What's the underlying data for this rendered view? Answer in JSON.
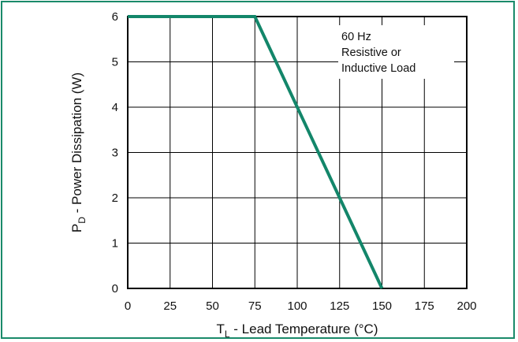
{
  "chart_data": {
    "type": "line",
    "xlabel_main": "T",
    "xlabel_sub": "L",
    "xlabel_rest": " - Lead Temperature (°C)",
    "ylabel_main": "P",
    "ylabel_sub": "D",
    "ylabel_rest": " - Power Dissipation (W)",
    "xlim": [
      0,
      200
    ],
    "ylim": [
      0,
      6
    ],
    "xticks": [
      0,
      25,
      50,
      75,
      100,
      125,
      150,
      175,
      200
    ],
    "yticks": [
      0,
      1,
      2,
      3,
      4,
      5,
      6
    ],
    "grid": true,
    "annotation": [
      "60 Hz",
      "Resistive or",
      "Inductive Load"
    ],
    "series": [
      {
        "x": [
          0,
          75,
          150
        ],
        "y": [
          6,
          6,
          0
        ],
        "color": "#13866a"
      }
    ],
    "frame_color": "#1a8a6a"
  }
}
